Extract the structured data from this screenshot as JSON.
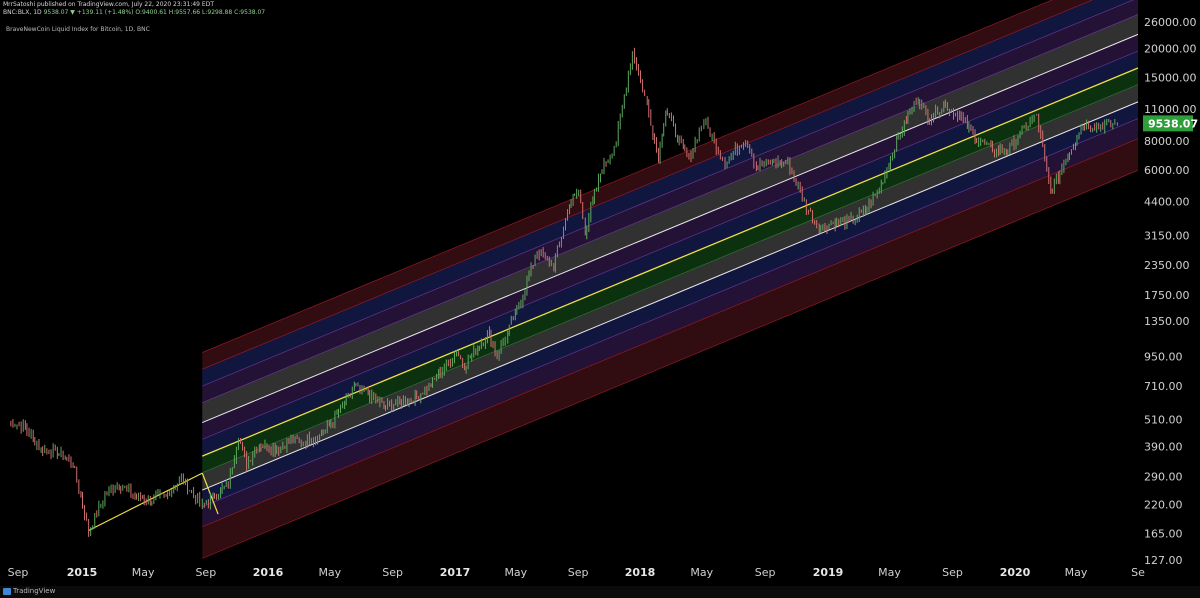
{
  "header": {
    "publish_line": "MrrSatoshi published on TradingView.com, July 22, 2020 23:31:49 EDT",
    "symbol": "BNC:BLX, 1D",
    "ohlc_text": "9538.07 ▼ +139.11 (+1.48%) O:9400.61 H:9557.66 L:9298.88 C:9538.07",
    "indicator": "BraveNewCoin Liquid Index for Bitcoin, 1D, BNC"
  },
  "price_tag": {
    "value": "9538.07",
    "color": "#2e9e3a"
  },
  "footer": {
    "brand": "TradingView"
  },
  "colors": {
    "background": "#000000",
    "candle_up": "#5ea85e",
    "candle_down": "#d07070",
    "trend_line": "#f0e040",
    "band_gray": "#3a3a3a",
    "band_green": "#0e3a12",
    "band_blue": "#141a4a",
    "band_purple": "#2a1440",
    "band_red": "#3a0e14"
  },
  "chart_data": {
    "type": "line",
    "title": "",
    "xlabel": "",
    "ylabel": "",
    "y_scale": "log",
    "ylim": [
      127,
      26000
    ],
    "x_ticks": [
      "Sep",
      "2015",
      "May",
      "Sep",
      "2016",
      "May",
      "Sep",
      "2017",
      "May",
      "Sep",
      "2018",
      "May",
      "Sep",
      "2019",
      "May",
      "Sep",
      "2020",
      "May",
      "Se"
    ],
    "x_ticks_bold": [
      false,
      true,
      false,
      false,
      true,
      false,
      false,
      true,
      false,
      false,
      true,
      false,
      false,
      true,
      false,
      false,
      true,
      false,
      false
    ],
    "y_ticks": [
      "26000.00",
      "20000.00",
      "15000.00",
      "11000.00",
      "8000.00",
      "6000.00",
      "4400.00",
      "3150.00",
      "2350.00",
      "1750.00",
      "1350.00",
      "950.00",
      "710.00",
      "510.00",
      "390.00",
      "290.00",
      "220.00",
      "165.00",
      "127.00"
    ],
    "y_tick_values": [
      26000,
      20000,
      15000,
      11000,
      8000,
      6000,
      4400,
      3150,
      2350,
      1750,
      1350,
      950,
      710,
      510,
      390,
      290,
      220,
      165,
      127
    ],
    "series": [
      {
        "name": "BLX",
        "x": [
          "2014-08-15",
          "2014-09-15",
          "2014-10-15",
          "2014-11-15",
          "2014-12-15",
          "2015-01-14",
          "2015-02-15",
          "2015-03-15",
          "2015-04-15",
          "2015-05-15",
          "2015-06-15",
          "2015-07-15",
          "2015-08-25",
          "2015-09-15",
          "2015-10-15",
          "2015-11-04",
          "2015-11-20",
          "2015-12-15",
          "2016-01-15",
          "2016-02-15",
          "2016-03-15",
          "2016-04-15",
          "2016-05-15",
          "2016-06-18",
          "2016-07-15",
          "2016-08-15",
          "2016-09-15",
          "2016-10-15",
          "2016-11-15",
          "2016-12-15",
          "2017-01-04",
          "2017-01-20",
          "2017-02-15",
          "2017-03-10",
          "2017-03-25",
          "2017-04-15",
          "2017-05-15",
          "2017-06-12",
          "2017-07-15",
          "2017-08-15",
          "2017-09-02",
          "2017-09-15",
          "2017-10-15",
          "2017-11-15",
          "2017-12-17",
          "2018-01-15",
          "2018-02-06",
          "2018-02-20",
          "2018-03-15",
          "2018-04-06",
          "2018-05-05",
          "2018-06-15",
          "2018-07-25",
          "2018-08-15",
          "2018-09-15",
          "2018-10-15",
          "2018-11-20",
          "2018-12-15",
          "2019-01-15",
          "2019-02-15",
          "2019-03-15",
          "2019-04-15",
          "2019-05-15",
          "2019-06-26",
          "2019-07-15",
          "2019-08-15",
          "2019-09-15",
          "2019-10-15",
          "2019-11-15",
          "2019-12-15",
          "2020-01-15",
          "2020-02-13",
          "2020-03-12",
          "2020-04-15",
          "2020-05-15",
          "2020-06-15",
          "2020-07-22"
        ],
        "values": [
          500,
          470,
          380,
          370,
          330,
          170,
          240,
          270,
          240,
          230,
          240,
          285,
          215,
          235,
          270,
          430,
          330,
          400,
          380,
          410,
          415,
          440,
          530,
          700,
          660,
          580,
          610,
          630,
          720,
          880,
          1000,
          870,
          1050,
          1200,
          960,
          1200,
          1750,
          2700,
          2300,
          4300,
          4900,
          3300,
          5800,
          8000,
          19500,
          11500,
          6900,
          11000,
          8300,
          6700,
          9800,
          6500,
          8200,
          6300,
          6500,
          6400,
          4200,
          3400,
          3600,
          3650,
          4000,
          5200,
          8000,
          12500,
          10000,
          11500,
          10300,
          8300,
          7400,
          7200,
          8800,
          10300,
          4800,
          7000,
          9500,
          9300,
          9538.07
        ]
      }
    ]
  }
}
